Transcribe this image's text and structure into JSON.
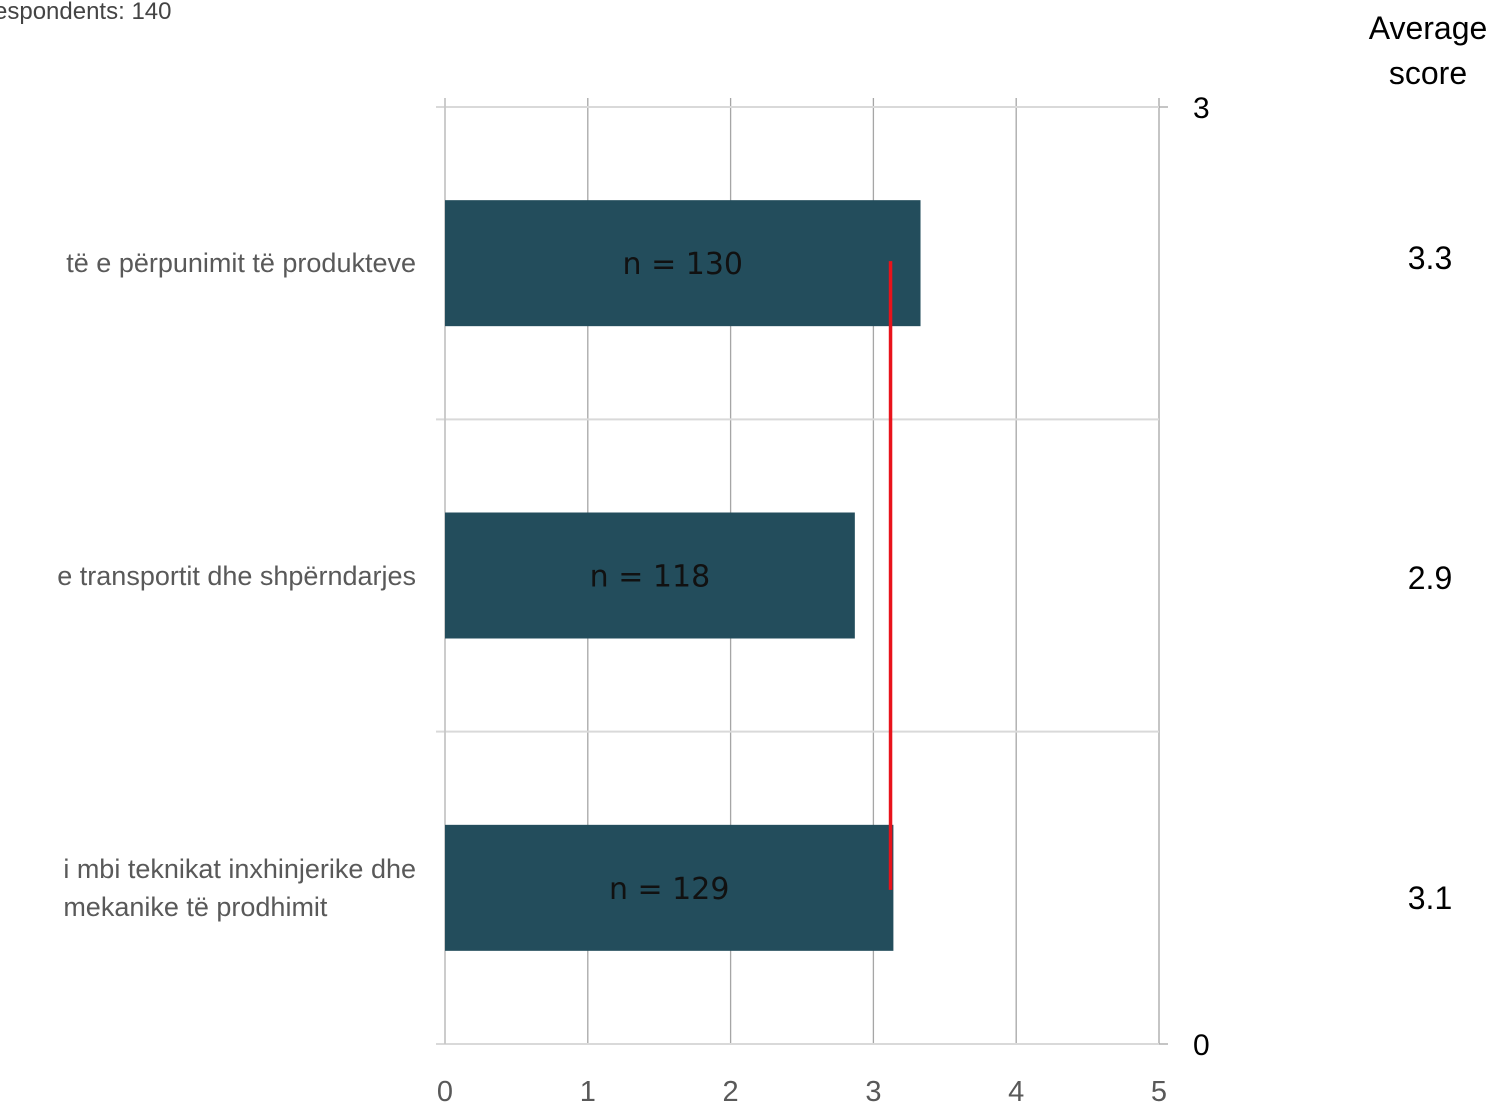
{
  "respondents_label": "espondents: 140",
  "average_header": {
    "line1": "Average",
    "line2": "score"
  },
  "chart_data": {
    "type": "bar",
    "orientation": "horizontal",
    "categories": [
      [
        "të e përpunimit të produkteve"
      ],
      [
        "e transportit dhe shpërndarjes"
      ],
      [
        "i mbi teknikat inxhinjerike dhe",
        "mekanike të  prodhimit"
      ]
    ],
    "values": [
      3.33,
      2.87,
      3.14
    ],
    "bar_labels": [
      "n = 130",
      "n = 118",
      "n = 129"
    ],
    "average_scores": [
      "3.3",
      "2.9",
      "3.1"
    ],
    "reference_line": {
      "value": 3.12,
      "color": "#e8131b"
    },
    "xlim": [
      0,
      5
    ],
    "x_ticks": [
      "0",
      "1",
      "2",
      "3",
      "4",
      "5"
    ],
    "secondary_y_ticks": [
      "3",
      "0"
    ],
    "bar_color": "#234d5c",
    "grid": true
  }
}
